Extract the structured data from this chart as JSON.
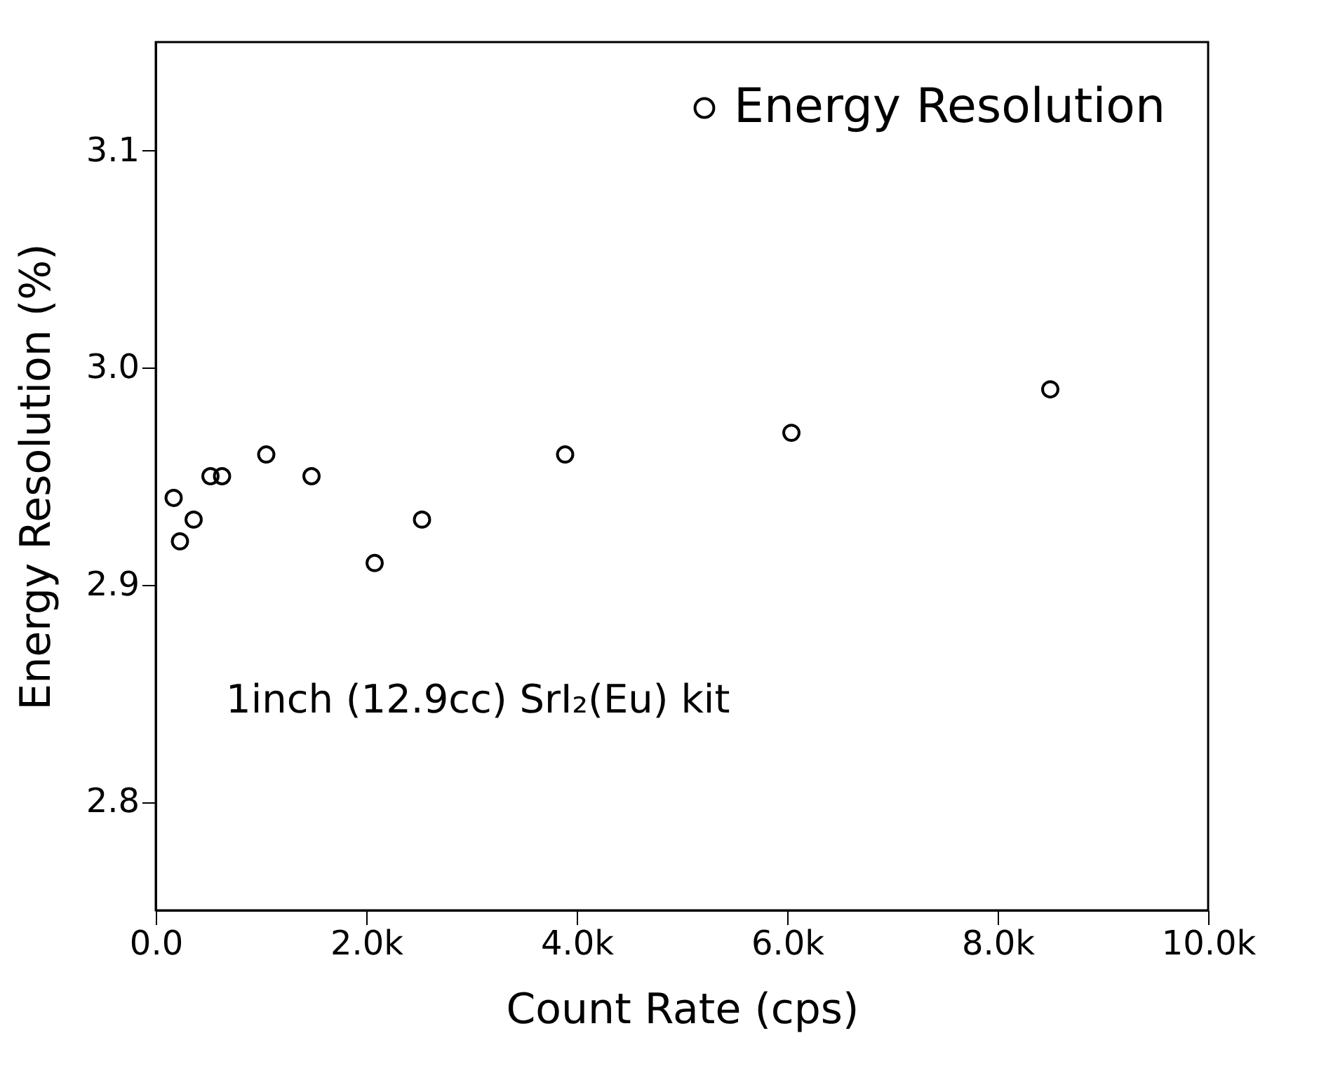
{
  "chart_data": {
    "type": "scatter",
    "xlabel": "Count Rate (cps)",
    "ylabel": "Energy Resolution (%)",
    "x": [
      170,
      230,
      360,
      520,
      630,
      1050,
      1480,
      2080,
      2530,
      3890,
      6040,
      8500
    ],
    "series": [
      {
        "name": "Energy Resolution",
        "color": "#000000",
        "values": [
          2.94,
          2.92,
          2.93,
          2.95,
          2.95,
          2.96,
          2.95,
          2.91,
          2.93,
          2.96,
          2.97,
          2.99
        ]
      }
    ],
    "xlim": [
      0,
      10000
    ],
    "ylim": [
      2.75,
      3.15
    ],
    "xticks": [
      {
        "value": 0,
        "label": "0.0"
      },
      {
        "value": 2000,
        "label": "2.0k"
      },
      {
        "value": 4000,
        "label": "4.0k"
      },
      {
        "value": 6000,
        "label": "6.0k"
      },
      {
        "value": 8000,
        "label": "8.0k"
      },
      {
        "value": 10000,
        "label": "10.0k"
      }
    ],
    "yticks": [
      {
        "value": 2.8,
        "label": "2.8"
      },
      {
        "value": 2.9,
        "label": "2.9"
      },
      {
        "value": 3.0,
        "label": "3.0"
      },
      {
        "value": 3.1,
        "label": "3.1"
      }
    ],
    "annotations": [
      "1inch (12.9cc) SrI₂(Eu) kit"
    ],
    "legend": "top right",
    "marker": "circle",
    "grid": false
  }
}
